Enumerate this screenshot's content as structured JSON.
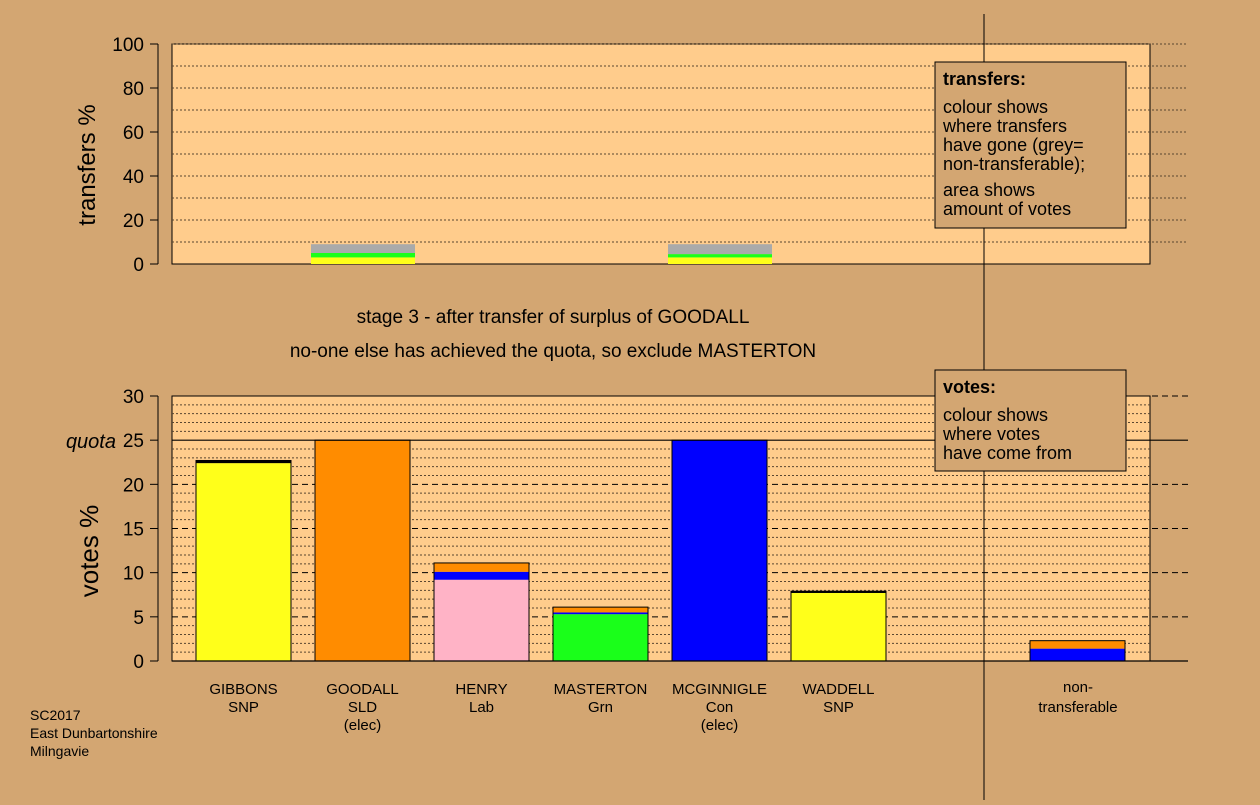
{
  "colors": {
    "background": "#d3a672",
    "panel": "#ffcc8c",
    "snp": "#ffff1a",
    "sld": "#ff8c00",
    "lab": "#ffb3c6",
    "grn": "#1aff1a",
    "con": "#0000ff",
    "nontransferable": "#aaaaaa",
    "black": "#000000"
  },
  "headings": {
    "stage": "stage 3 - after transfer of surplus of GOODALL",
    "status": "no-one else has achieved the quota, so exclude MASTERTON"
  },
  "footer": {
    "line1": "SC2017",
    "line2": "East Dunbartonshire",
    "line3": "Milngavie"
  },
  "legends": {
    "transfers": {
      "title": "transfers:",
      "body": [
        "colour shows",
        "where transfers",
        "have gone (grey=",
        "non-transferable);"
      ],
      "body2": [
        "area shows",
        "amount of votes"
      ]
    },
    "votes": {
      "title": "votes:",
      "body": [
        "colour shows",
        "where votes",
        "have come from"
      ]
    }
  },
  "chart_data": [
    {
      "type": "bar",
      "name": "transfers",
      "ylabel": "transfers %",
      "ylim": [
        0,
        100
      ],
      "yticks": [
        0,
        20,
        40,
        60,
        80,
        100
      ],
      "grid": "dotted",
      "bars": [
        {
          "slot": 1,
          "segments": [
            {
              "color": "#ffff1a",
              "value": 3.0
            },
            {
              "color": "#1aff1a",
              "value": 2.0
            },
            {
              "color": "#aaaaaa",
              "value": 4.0
            }
          ]
        },
        {
          "slot": 4,
          "segments": [
            {
              "color": "#ffff1a",
              "value": 3.0
            },
            {
              "color": "#1aff1a",
              "value": 1.5
            },
            {
              "color": "#aaaaaa",
              "value": 4.5
            }
          ]
        }
      ]
    },
    {
      "type": "bar",
      "name": "votes",
      "ylabel": "votes %",
      "ylim": [
        0,
        30
      ],
      "yticks": [
        0,
        5,
        10,
        15,
        20,
        25,
        30
      ],
      "quota": 25,
      "quota_label": "quota",
      "grid": "dashed",
      "categories": [
        {
          "name": "GIBBONS",
          "party": "SNP",
          "note": "",
          "segments": [
            {
              "color": "#ffff1a",
              "value": 22.4
            },
            {
              "color": "#000000",
              "value": 0.3
            }
          ]
        },
        {
          "name": "GOODALL",
          "party": "SLD",
          "note": "(elec)",
          "segments": [
            {
              "color": "#ff8c00",
              "value": 25.0
            }
          ]
        },
        {
          "name": "HENRY",
          "party": "Lab",
          "note": "",
          "segments": [
            {
              "color": "#ffb3c6",
              "value": 9.2
            },
            {
              "color": "#0000ff",
              "value": 0.9
            },
            {
              "color": "#ff8c00",
              "value": 1.0
            }
          ]
        },
        {
          "name": "MASTERTON",
          "party": "Grn",
          "note": "",
          "segments": [
            {
              "color": "#1aff1a",
              "value": 5.3
            },
            {
              "color": "#0000ff",
              "value": 0.2
            },
            {
              "color": "#ff8c00",
              "value": 0.6
            }
          ]
        },
        {
          "name": "MCGINNIGLE",
          "party": "Con",
          "note": "(elec)",
          "segments": [
            {
              "color": "#0000ff",
              "value": 25.0
            }
          ]
        },
        {
          "name": "WADDELL",
          "party": "SNP",
          "note": "",
          "segments": [
            {
              "color": "#ffff1a",
              "value": 7.7
            },
            {
              "color": "#000000",
              "value": 0.2
            }
          ]
        }
      ],
      "nontransferable": {
        "label1": "non-",
        "label2": "transferable",
        "segments": [
          {
            "color": "#0000ff",
            "value": 1.4
          },
          {
            "color": "#ff8c00",
            "value": 0.9
          }
        ]
      }
    }
  ]
}
